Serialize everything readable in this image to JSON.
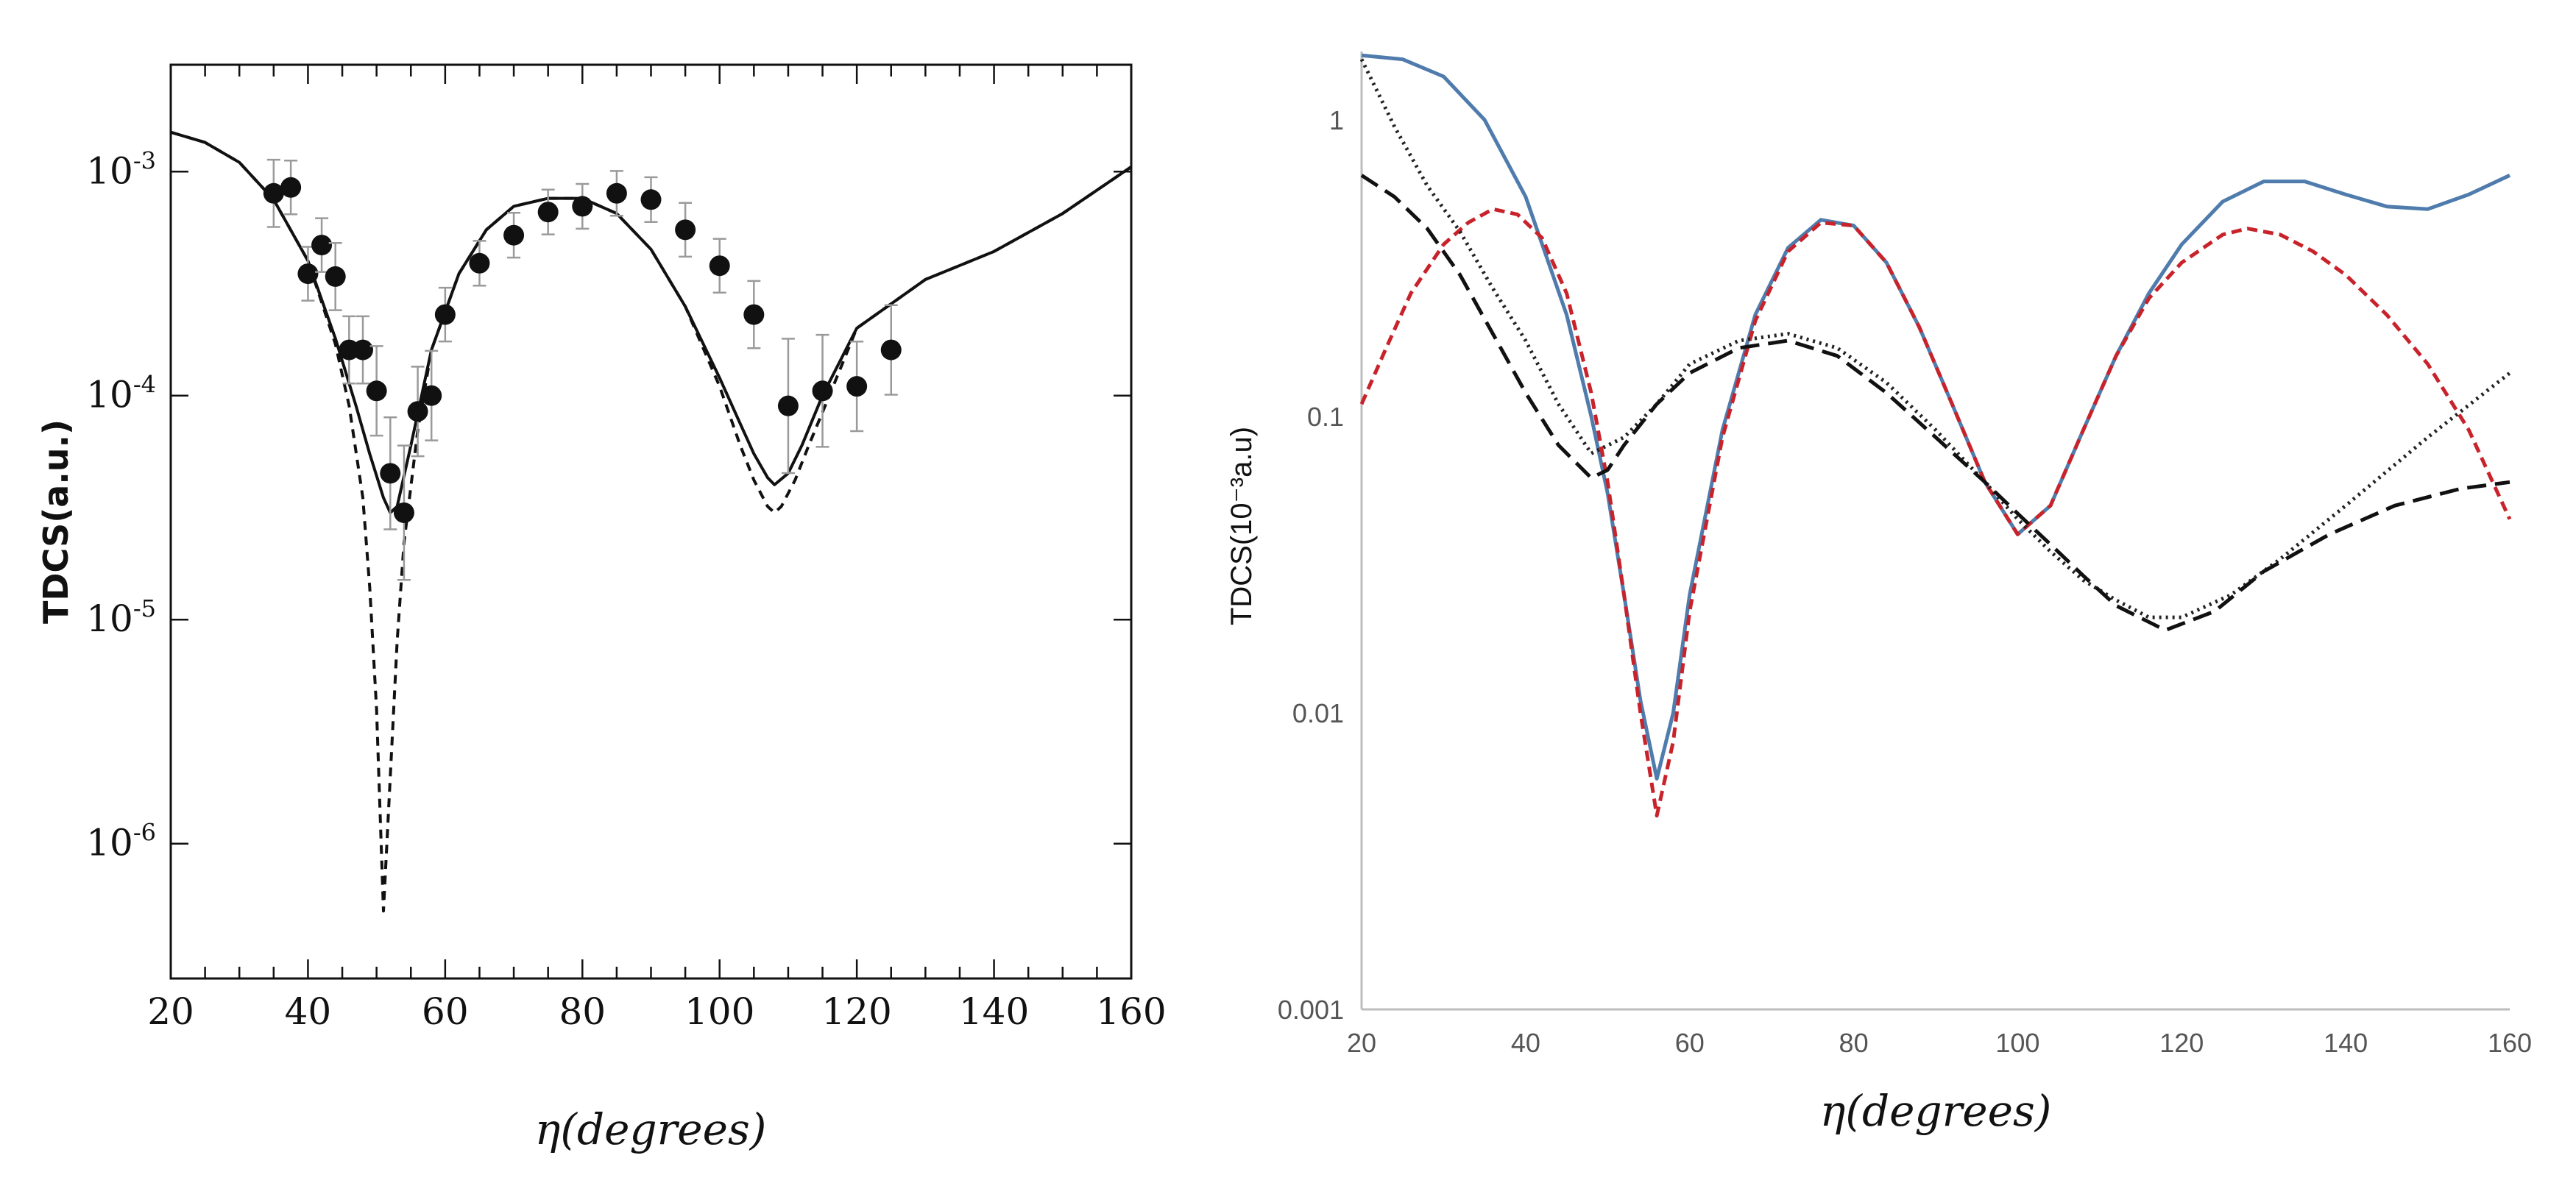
{
  "chart_data": [
    {
      "id": "left",
      "type": "line",
      "scale": "log",
      "xlabel": "η(degrees)",
      "ylabel": "TDCS(a.u.)",
      "xlim": [
        20,
        160
      ],
      "ylim": [
        2.5e-07,
        0.003
      ],
      "x_ticks": [
        20,
        40,
        60,
        80,
        100,
        120,
        140,
        160
      ],
      "y_ticks": [
        {
          "value": 1e-06,
          "mantissa": "10",
          "exp": "-6"
        },
        {
          "value": 1e-05,
          "mantissa": "10",
          "exp": "-5"
        },
        {
          "value": 0.0001,
          "mantissa": "10",
          "exp": "-4"
        },
        {
          "value": 0.001,
          "mantissa": "10",
          "exp": "-3"
        }
      ],
      "series": [
        {
          "name": "solid",
          "color": "#111111",
          "dash": "",
          "x": [
            20,
            25,
            30,
            35,
            40,
            44,
            47,
            49,
            51,
            52,
            53,
            55,
            58,
            62,
            66,
            70,
            75,
            80,
            85,
            90,
            95,
            100,
            103,
            105,
            107,
            108,
            110,
            112,
            115,
            120,
            130,
            140,
            150,
            160
          ],
          "y": [
            0.0015,
            0.00135,
            0.0011,
            0.00075,
            0.0004,
            0.00018,
            9e-05,
            5.5e-05,
            3.5e-05,
            3e-05,
            3.2e-05,
            6e-05,
            0.00016,
            0.00035,
            0.00055,
            0.0007,
            0.00076,
            0.00076,
            0.00065,
            0.00045,
            0.00025,
            0.00012,
            7.5e-05,
            5.5e-05,
            4.3e-05,
            4e-05,
            4.5e-05,
            6e-05,
            0.0001,
            0.0002,
            0.00033,
            0.00044,
            0.00065,
            0.00105
          ]
        },
        {
          "name": "dashed",
          "color": "#111111",
          "dash": "12,9",
          "x": [
            20,
            25,
            30,
            35,
            40,
            44,
            46,
            48,
            49,
            50,
            51,
            52,
            53,
            54,
            56,
            58,
            62,
            66,
            70,
            75,
            80,
            85,
            90,
            95,
            100,
            103,
            105,
            107,
            108,
            109,
            111,
            113,
            116,
            120,
            130,
            140,
            150,
            160
          ],
          "y": [
            0.0015,
            0.00135,
            0.0011,
            0.00075,
            0.0004,
            0.00017,
            9e-05,
            3.5e-05,
            1.4e-05,
            4e-06,
            5e-07,
            2e-06,
            8e-06,
            2.2e-05,
            7e-05,
            0.00016,
            0.00035,
            0.00055,
            0.0007,
            0.00076,
            0.00076,
            0.00065,
            0.00045,
            0.00025,
            0.00011,
            6e-05,
            4.2e-05,
            3.2e-05,
            3e-05,
            3.2e-05,
            4.2e-05,
            6e-05,
            0.0001,
            0.0002,
            0.00033,
            0.00044,
            0.00065,
            0.00105
          ]
        }
      ],
      "points": {
        "name": "experiment",
        "color": "#111111",
        "x": [
          35,
          37.5,
          40,
          42,
          44,
          46,
          48,
          50,
          52,
          54,
          56,
          58,
          60,
          65,
          70,
          75,
          80,
          85,
          90,
          95,
          100,
          105,
          110,
          115,
          120,
          125
        ],
        "y": [
          0.0008,
          0.00085,
          0.00035,
          0.00047,
          0.00034,
          0.00016,
          0.00016,
          0.000105,
          4.5e-05,
          3e-05,
          8.5e-05,
          0.0001,
          0.00023,
          0.00039,
          0.00052,
          0.00066,
          0.0007,
          0.0008,
          0.00075,
          0.00055,
          0.00038,
          0.00023,
          9e-05,
          0.000105,
          0.00011,
          0.00016
        ],
        "err": [
          0.15,
          0.12,
          0.12,
          0.12,
          0.15,
          0.15,
          0.15,
          0.2,
          0.25,
          0.3,
          0.2,
          0.2,
          0.12,
          0.1,
          0.1,
          0.1,
          0.1,
          0.1,
          0.1,
          0.12,
          0.12,
          0.15,
          0.3,
          0.25,
          0.2,
          0.2
        ]
      }
    },
    {
      "id": "right",
      "type": "line",
      "scale": "log",
      "xlabel": "η(degrees)",
      "ylabel": "TDCS(10⁻³a.u)",
      "xlim": [
        20,
        160
      ],
      "ylim": [
        0.001,
        1.7
      ],
      "x_ticks": [
        20,
        40,
        60,
        80,
        100,
        120,
        140,
        160
      ],
      "y_ticks": [
        {
          "value": 0.001,
          "label": "0.001"
        },
        {
          "value": 0.01,
          "label": "0.01"
        },
        {
          "value": 0.1,
          "label": "0.1"
        },
        {
          "value": 1,
          "label": "1"
        }
      ],
      "series": [
        {
          "name": "blue solid",
          "color": "#4f7cac",
          "dash": "",
          "x": [
            20,
            25,
            30,
            35,
            40,
            45,
            48,
            50,
            52,
            54,
            56,
            58,
            60,
            64,
            68,
            72,
            76,
            80,
            84,
            88,
            92,
            96,
            100,
            104,
            108,
            112,
            116,
            120,
            125,
            130,
            135,
            140,
            145,
            150,
            155,
            160
          ],
          "y": [
            1.65,
            1.6,
            1.4,
            1.0,
            0.55,
            0.22,
            0.1,
            0.055,
            0.025,
            0.011,
            0.006,
            0.01,
            0.025,
            0.09,
            0.22,
            0.37,
            0.46,
            0.44,
            0.33,
            0.2,
            0.11,
            0.06,
            0.04,
            0.05,
            0.09,
            0.16,
            0.26,
            0.38,
            0.53,
            0.62,
            0.62,
            0.56,
            0.51,
            0.5,
            0.56,
            0.65
          ]
        },
        {
          "name": "red short-dash",
          "color": "#c8232b",
          "dash": "14,8",
          "x": [
            20,
            23,
            26,
            30,
            33,
            36,
            39,
            42,
            45,
            48,
            50,
            52,
            54,
            56,
            58,
            60,
            64,
            68,
            72,
            76,
            80,
            84,
            88,
            92,
            96,
            100,
            104,
            108,
            112,
            116,
            120,
            125,
            128,
            132,
            136,
            140,
            145,
            150,
            155,
            160
          ],
          "y": [
            0.11,
            0.17,
            0.26,
            0.38,
            0.45,
            0.5,
            0.48,
            0.4,
            0.26,
            0.12,
            0.06,
            0.025,
            0.01,
            0.0045,
            0.008,
            0.022,
            0.085,
            0.21,
            0.36,
            0.45,
            0.44,
            0.33,
            0.2,
            0.11,
            0.06,
            0.04,
            0.05,
            0.09,
            0.16,
            0.25,
            0.33,
            0.41,
            0.43,
            0.41,
            0.36,
            0.3,
            0.22,
            0.15,
            0.09,
            0.045
          ]
        },
        {
          "name": "black dotted",
          "color": "#222222",
          "dash": "3,6",
          "x": [
            20,
            24,
            28,
            32,
            36,
            40,
            44,
            48,
            52,
            56,
            60,
            66,
            72,
            78,
            84,
            90,
            96,
            100,
            104,
            108,
            112,
            116,
            120,
            126,
            132,
            140,
            150,
            160
          ],
          "y": [
            1.6,
            0.95,
            0.6,
            0.42,
            0.27,
            0.18,
            0.11,
            0.075,
            0.085,
            0.11,
            0.15,
            0.18,
            0.19,
            0.17,
            0.13,
            0.09,
            0.06,
            0.045,
            0.035,
            0.028,
            0.024,
            0.021,
            0.021,
            0.025,
            0.033,
            0.05,
            0.085,
            0.14
          ]
        },
        {
          "name": "black long-dash",
          "color": "#111111",
          "dash": "26,12",
          "x": [
            20,
            24,
            28,
            32,
            36,
            40,
            44,
            48,
            50,
            52,
            56,
            60,
            66,
            72,
            78,
            84,
            90,
            96,
            100,
            104,
            108,
            112,
            118,
            124,
            130,
            138,
            146,
            154,
            160
          ],
          "y": [
            0.65,
            0.55,
            0.43,
            0.3,
            0.19,
            0.12,
            0.08,
            0.062,
            0.066,
            0.08,
            0.11,
            0.14,
            0.17,
            0.18,
            0.16,
            0.12,
            0.085,
            0.06,
            0.047,
            0.037,
            0.029,
            0.023,
            0.019,
            0.022,
            0.03,
            0.04,
            0.05,
            0.057,
            0.06
          ]
        }
      ]
    }
  ]
}
